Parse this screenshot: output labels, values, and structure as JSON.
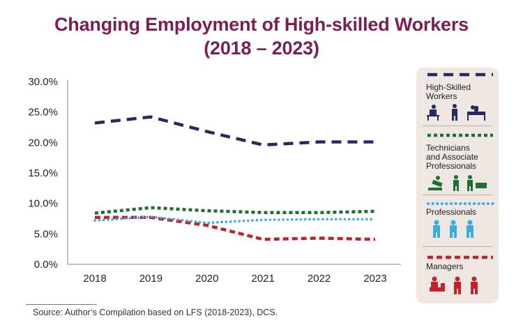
{
  "chart_data": {
    "type": "line",
    "title": "Changing Employment of High-skilled Workers",
    "subtitle": "(2018 – 2023)",
    "categories": [
      "2018",
      "2019",
      "2020",
      "2021",
      "2022",
      "2023"
    ],
    "yticks": [
      "0.0%",
      "5.0%",
      "10.0%",
      "15.0%",
      "20.0%",
      "25.0%",
      "30.0%"
    ],
    "ylim": [
      0,
      30
    ],
    "xlabel": "",
    "ylabel": "",
    "legend_position": "right",
    "series": [
      {
        "name": "High-Skilled Workers",
        "color": "#262a5e",
        "style": "longdash",
        "values": [
          23.2,
          24.2,
          21.8,
          19.6,
          20.1,
          20.1
        ]
      },
      {
        "name": "Technicians and Associate Professionals",
        "color": "#1e6f35",
        "style": "squaredot",
        "values": [
          8.4,
          9.3,
          8.8,
          8.5,
          8.5,
          8.7
        ]
      },
      {
        "name": "Professionals",
        "color": "#39aee4",
        "style": "dot",
        "values": [
          7.2,
          7.8,
          6.8,
          7.3,
          7.4,
          7.4
        ]
      },
      {
        "name": "Managers",
        "color": "#c0232c",
        "style": "dash",
        "values": [
          7.7,
          7.7,
          6.4,
          4.1,
          4.3,
          4.1
        ]
      }
    ]
  },
  "legend": {
    "items": [
      {
        "lines": [
          "High-Skilled",
          "Workers"
        ],
        "icon": "worker-group-icon"
      },
      {
        "lines": [
          "Technicians",
          "and Associate",
          "Professionals"
        ],
        "icon": "technician-group-icon"
      },
      {
        "lines": [
          "Professionals"
        ],
        "icon": "professional-group-icon"
      },
      {
        "lines": [
          "Managers"
        ],
        "icon": "manager-group-icon"
      }
    ]
  },
  "source": "Source: Author’s Compilation based on LFS (2018-2023), DCS."
}
